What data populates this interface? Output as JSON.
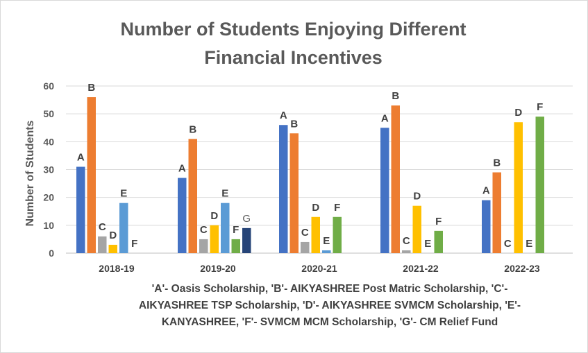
{
  "chart_data": {
    "type": "bar",
    "title_lines": [
      "Number of Students Enjoying Different",
      "Financial Incentives"
    ],
    "ylabel": "Number of Students",
    "xlabel": "",
    "ylim": [
      0,
      60
    ],
    "yticks": [
      0,
      10,
      20,
      30,
      40,
      50,
      60
    ],
    "grid": true,
    "categories": [
      "2018-19",
      "2019-20",
      "2020-21",
      "2021-22",
      "2022-23"
    ],
    "series": [
      {
        "name": "A",
        "color": "#4472c4",
        "values": [
          31,
          27,
          46,
          45,
          19
        ]
      },
      {
        "name": "B",
        "color": "#ed7d31",
        "values": [
          56,
          41,
          43,
          53,
          29
        ]
      },
      {
        "name": "C",
        "color": "#a5a5a5",
        "values": [
          6,
          5,
          4,
          1,
          0
        ]
      },
      {
        "name": "D",
        "color": "#ffc000",
        "values": [
          3,
          10,
          13,
          17,
          47
        ]
      },
      {
        "name": "E",
        "color": "#5b9bd5",
        "values": [
          18,
          18,
          1,
          0,
          0
        ]
      },
      {
        "name": "F",
        "color": "#70ad47",
        "values": [
          0,
          5,
          13,
          8,
          49
        ]
      },
      {
        "name": "G",
        "color": "#264478",
        "values": [
          0,
          9,
          0,
          0,
          0
        ]
      }
    ],
    "bar_labels": [
      [
        "A",
        "B",
        "C",
        "D",
        "E",
        "F",
        null
      ],
      [
        "A",
        "B",
        "C",
        "D",
        "E",
        "F",
        "G"
      ],
      [
        "A",
        "B",
        "C",
        "D",
        "E",
        "F",
        null
      ],
      [
        "A",
        "B",
        "C",
        "D",
        "E",
        "F",
        null
      ],
      [
        "A",
        "B",
        "C",
        "D",
        "E",
        "F",
        null
      ]
    ],
    "note": "'A'- Oasis Scholarship, 'B'- AIKYASHREE Post Matric Scholarship, 'C'- AIKYASHREE TSP Scholarship, 'D'-  AIKYASHREE SVMCM Scholarship, 'E'- KANYASHREE, 'F'- SVMCM MCM Scholarship, 'G'-  CM Relief Fund",
    "note_lines": [
      "'A'- Oasis Scholarship, 'B'- AIKYASHREE Post Matric Scholarship, 'C'-",
      "AIKYASHREE TSP Scholarship, 'D'-  AIKYASHREE SVMCM Scholarship, 'E'-",
      "KANYASHREE, 'F'- SVMCM MCM Scholarship, 'G'-  CM Relief Fund"
    ]
  }
}
